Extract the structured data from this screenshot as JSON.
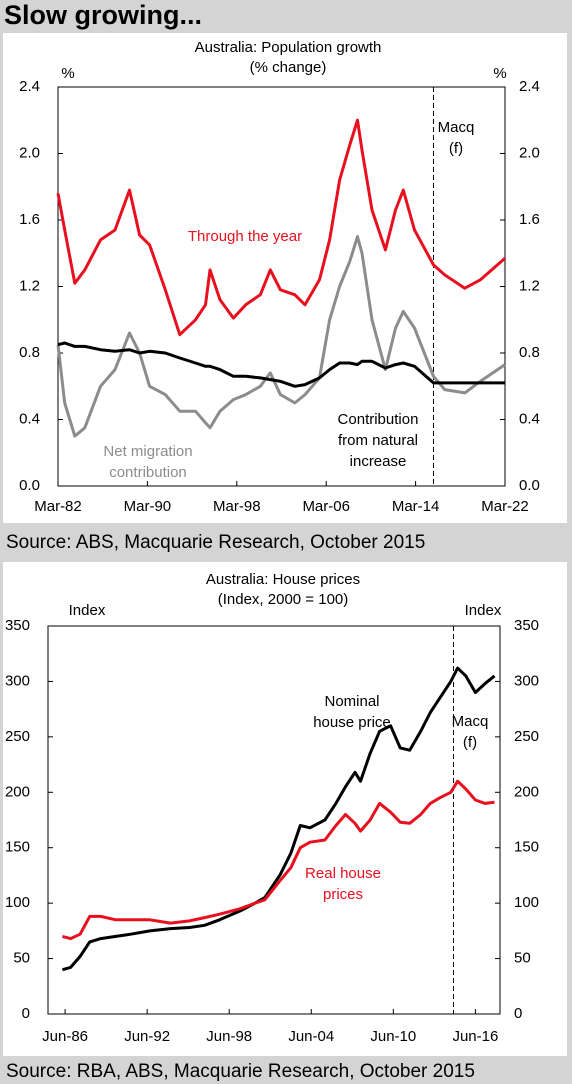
{
  "header": {
    "title": "Slow growing..."
  },
  "chart_data": [
    {
      "type": "line",
      "title": "Australia: Population growth",
      "subtitle": "(% change)",
      "ylabel": "%",
      "y2label": "%",
      "x": [
        1982.2,
        1982.8,
        1983.7,
        1984.6,
        1986.0,
        1987.3,
        1988.6,
        1989.5,
        1990.4,
        1991.8,
        1993.1,
        1994.5,
        1995.4,
        1995.8,
        1996.7,
        1997.9,
        1999.0,
        2000.3,
        2001.2,
        2002.1,
        2003.4,
        2004.3,
        2005.6,
        2006.5,
        2007.4,
        2008.3,
        2009.0,
        2009.4,
        2010.3,
        2011.5,
        2012.4,
        2013.1,
        2014.1,
        2015.8,
        2016.8,
        2018.6,
        2020.0,
        2022.2
      ],
      "series": [
        {
          "name": "Through the year",
          "color": "#e8101e",
          "values": [
            1.76,
            1.54,
            1.22,
            1.3,
            1.48,
            1.54,
            1.78,
            1.51,
            1.45,
            1.18,
            0.91,
            1.0,
            1.09,
            1.3,
            1.12,
            1.01,
            1.09,
            1.15,
            1.3,
            1.18,
            1.15,
            1.09,
            1.24,
            1.48,
            1.84,
            2.05,
            2.2,
            2.02,
            1.66,
            1.42,
            1.66,
            1.78,
            1.54,
            1.33,
            1.27,
            1.19,
            1.24,
            1.37
          ]
        },
        {
          "name": "Net migration contribution",
          "color": "#8c8c8c",
          "values": [
            0.85,
            0.5,
            0.3,
            0.35,
            0.6,
            0.7,
            0.92,
            0.8,
            0.6,
            0.55,
            0.45,
            0.45,
            0.38,
            0.35,
            0.45,
            0.52,
            0.55,
            0.6,
            0.68,
            0.55,
            0.5,
            0.55,
            0.65,
            1.0,
            1.2,
            1.35,
            1.5,
            1.4,
            1.0,
            0.7,
            0.95,
            1.05,
            0.95,
            0.66,
            0.58,
            0.56,
            0.63,
            0.73
          ]
        },
        {
          "name": "Contribution from natural increase",
          "color": "#000000",
          "values": [
            0.85,
            0.86,
            0.84,
            0.84,
            0.82,
            0.81,
            0.82,
            0.8,
            0.81,
            0.8,
            0.77,
            0.74,
            0.72,
            0.72,
            0.7,
            0.66,
            0.66,
            0.65,
            0.64,
            0.63,
            0.6,
            0.61,
            0.65,
            0.7,
            0.74,
            0.74,
            0.73,
            0.75,
            0.75,
            0.71,
            0.73,
            0.74,
            0.72,
            0.62,
            0.62,
            0.62,
            0.62,
            0.62
          ]
        }
      ],
      "annotations": [
        {
          "lines": [
            "Through the year"
          ],
          "color": "#e8101e"
        },
        {
          "lines": [
            "Net migration",
            "contribution"
          ],
          "color": "#8c8c8c"
        },
        {
          "lines": [
            "Contribution",
            "from natural",
            "increase"
          ],
          "color": "#000000"
        },
        {
          "lines": [
            "Macq",
            "(f)"
          ],
          "color": "#000000"
        }
      ],
      "forecast_x": 2015.8,
      "xlim": [
        1982.2,
        2022.2
      ],
      "xticks": [
        {
          "value": 1982.2,
          "label": "Mar-82"
        },
        {
          "value": 1990.2,
          "label": "Mar-90"
        },
        {
          "value": 1998.2,
          "label": "Mar-98"
        },
        {
          "value": 2006.2,
          "label": "Mar-06"
        },
        {
          "value": 2014.2,
          "label": "Mar-14"
        },
        {
          "value": 2022.2,
          "label": "Mar-22"
        }
      ],
      "ylim": [
        0,
        2.4
      ],
      "yticks": [
        {
          "value": 0,
          "label": "0.0"
        },
        0.4,
        0.8,
        1.2,
        1.6,
        {
          "value": 2,
          "label": "2.0"
        },
        2.4
      ],
      "y2lim": [
        0,
        2.4
      ],
      "y2ticks": [
        {
          "value": 0,
          "label": "0.0"
        },
        0.4,
        0.8,
        1.2,
        1.6,
        {
          "value": 2,
          "label": "2.0"
        },
        2.4
      ],
      "source": "Source: ABS, Macquarie Research, October 2015"
    },
    {
      "type": "line",
      "title": "Australia: House prices",
      "subtitle": "(Index, 2000 = 100)",
      "ylabel": "Index",
      "y2label": "Index",
      "x": [
        1986.3,
        1986.9,
        1987.6,
        1988.3,
        1989.1,
        1990.2,
        1991.3,
        1992.7,
        1994.2,
        1995.6,
        1996.7,
        1997.8,
        1999.3,
        2000.4,
        2001.1,
        2002.2,
        2003.0,
        2003.7,
        2004.4,
        2005.5,
        2006.3,
        2007.0,
        2007.7,
        2008.1,
        2008.8,
        2009.5,
        2010.3,
        2011.0,
        2011.7,
        2012.5,
        2013.2,
        2013.9,
        2014.7,
        2015.2,
        2015.8,
        2016.5,
        2017.2,
        2017.9
      ],
      "series": [
        {
          "name": "Nominal house price",
          "color": "#000000",
          "values": [
            40,
            42,
            52,
            65,
            68,
            70,
            72,
            75,
            77,
            78,
            80,
            85,
            93,
            100,
            105,
            125,
            145,
            170,
            168,
            175,
            190,
            205,
            218,
            210,
            235,
            255,
            260,
            240,
            238,
            255,
            272,
            285,
            300,
            312,
            305,
            290,
            298,
            305
          ]
        },
        {
          "name": "Real house prices",
          "color": "#e8101e",
          "values": [
            70,
            68,
            72,
            88,
            88,
            85,
            85,
            85,
            82,
            84,
            87,
            90,
            95,
            100,
            103,
            120,
            132,
            150,
            155,
            157,
            170,
            180,
            172,
            165,
            175,
            190,
            182,
            173,
            172,
            180,
            190,
            195,
            200,
            210,
            203,
            193,
            190,
            191
          ]
        }
      ],
      "annotations": [
        {
          "lines": [
            "Nominal",
            "house price"
          ],
          "color": "#000000"
        },
        {
          "lines": [
            "Real house",
            "prices"
          ],
          "color": "#e8101e"
        },
        {
          "lines": [
            "Macq",
            "(f)"
          ],
          "color": "#000000"
        }
      ],
      "forecast_x": 2014.9,
      "xlim": [
        1985.25,
        2018.3
      ],
      "xticks": [
        {
          "value": 1986.5,
          "label": "Jun-86"
        },
        {
          "value": 1992.5,
          "label": "Jun-92"
        },
        {
          "value": 1998.5,
          "label": "Jun-98"
        },
        {
          "value": 2004.5,
          "label": "Jun-04"
        },
        {
          "value": 2010.5,
          "label": "Jun-10"
        },
        {
          "value": 2016.5,
          "label": "Jun-16"
        }
      ],
      "ylim": [
        0,
        350
      ],
      "yticks": [
        0,
        50,
        100,
        150,
        200,
        250,
        300,
        350
      ],
      "y2lim": [
        0,
        350
      ],
      "y2ticks": [
        0,
        50,
        100,
        150,
        200,
        250,
        300,
        350
      ],
      "source": "Source: RBA, ABS, Macquarie Research, October 2015"
    }
  ]
}
